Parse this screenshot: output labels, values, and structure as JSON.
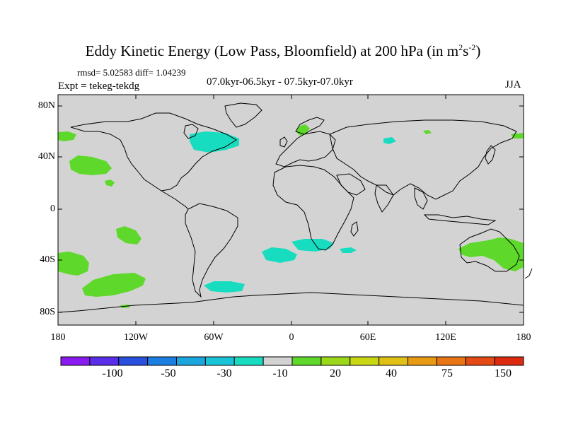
{
  "title": {
    "prefix": "Eddy Kinetic Energy (Low Pass, Bloomfield) at 200 hPa (in m",
    "sup1": "2",
    "mid": "s",
    "sup2": "-2",
    "suffix": ")"
  },
  "stats_line": "rmsd= 5.02583 diff= 1.04239",
  "subtitle": "07.0kyr-06.5kyr - 07.5kyr-07.0kyr",
  "experiment": "Expt = tekeg-tekdg",
  "season": "JJA",
  "lat_labels": [
    "80N",
    "40N",
    "0",
    "40S",
    "80S"
  ],
  "lon_labels": [
    "180",
    "120W",
    "60W",
    "0",
    "60E",
    "120E",
    "180"
  ],
  "colorbar": {
    "labels": [
      "-100",
      "-50",
      "-30",
      "-10",
      "20",
      "40",
      "75",
      "150"
    ],
    "colors": [
      "#8a1bf0",
      "#5a2ee8",
      "#2a50e0",
      "#1b7ee0",
      "#1ba6de",
      "#19c4d8",
      "#18dcc0",
      "#d3d3d3",
      "#5ed82a",
      "#9bd81a",
      "#c8d614",
      "#e0c014",
      "#e89a14",
      "#e87414",
      "#e44a14",
      "#dc2a10"
    ]
  },
  "map": {
    "background": "#d3d3d3",
    "positive_color": "#5ed82a",
    "negative_color": "#18dcc0"
  }
}
